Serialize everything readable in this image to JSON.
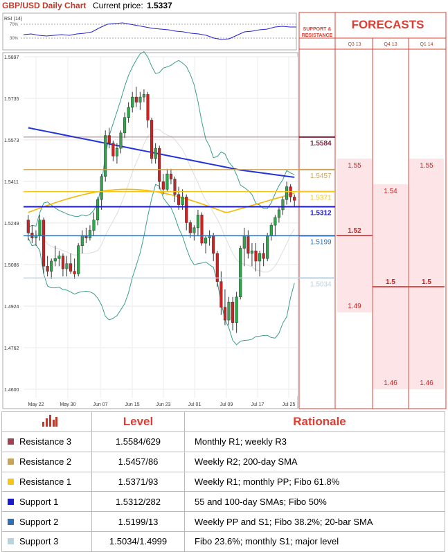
{
  "header": {
    "title": "GBP/USD Daily Chart",
    "price_label": "Current price:",
    "price_value": "1.5337"
  },
  "chart_data": {
    "type": "candlestick",
    "title": "GBP/USD Daily Chart",
    "ylim": [
      1.46,
      1.5897
    ],
    "y_ticks": [
      "1.5897",
      "1.5735",
      "1.5573",
      "1.5411",
      "1.5249",
      "1.5086",
      "1.4924",
      "1.4762",
      "1.4600"
    ],
    "x_ticks": [
      "May 22",
      "May 30",
      "Jun 07",
      "Jun 15",
      "Jun 23",
      "Jul 01",
      "Jul 09",
      "Jul 17",
      "Jul 25"
    ],
    "rsi": {
      "label": "RSI (14)",
      "levels": [
        "70%",
        "30%"
      ]
    },
    "candles": [
      [
        1.526,
        1.528,
        1.518,
        1.521
      ],
      [
        1.521,
        1.524,
        1.517,
        1.519
      ],
      [
        1.519,
        1.522,
        1.516,
        1.52
      ],
      [
        1.52,
        1.528,
        1.518,
        1.526
      ],
      [
        1.526,
        1.527,
        1.505,
        1.508
      ],
      [
        1.508,
        1.512,
        1.504,
        1.506
      ],
      [
        1.506,
        1.511,
        1.503,
        1.51
      ],
      [
        1.51,
        1.516,
        1.508,
        1.511
      ],
      [
        1.511,
        1.514,
        1.508,
        1.512
      ],
      [
        1.512,
        1.513,
        1.504,
        1.507
      ],
      [
        1.507,
        1.512,
        1.504,
        1.509
      ],
      [
        1.509,
        1.513,
        1.505,
        1.506
      ],
      [
        1.506,
        1.511,
        1.503,
        1.505
      ],
      [
        1.505,
        1.517,
        1.504,
        1.516
      ],
      [
        1.516,
        1.522,
        1.513,
        1.52
      ],
      [
        1.52,
        1.523,
        1.517,
        1.519
      ],
      [
        1.519,
        1.524,
        1.518,
        1.522
      ],
      [
        1.522,
        1.529,
        1.52,
        1.526
      ],
      [
        1.526,
        1.535,
        1.524,
        1.534
      ],
      [
        1.534,
        1.544,
        1.53,
        1.543
      ],
      [
        1.543,
        1.561,
        1.541,
        1.559
      ],
      [
        1.559,
        1.562,
        1.554,
        1.556
      ],
      [
        1.556,
        1.557,
        1.549,
        1.551
      ],
      [
        1.551,
        1.556,
        1.548,
        1.554
      ],
      [
        1.554,
        1.561,
        1.552,
        1.56
      ],
      [
        1.56,
        1.568,
        1.558,
        1.566
      ],
      [
        1.566,
        1.572,
        1.564,
        1.57
      ],
      [
        1.57,
        1.576,
        1.568,
        1.574
      ],
      [
        1.574,
        1.578,
        1.57,
        1.572
      ],
      [
        1.572,
        1.576,
        1.569,
        1.574
      ],
      [
        1.574,
        1.577,
        1.572,
        1.575
      ],
      [
        1.575,
        1.576,
        1.562,
        1.565
      ],
      [
        1.565,
        1.566,
        1.548,
        1.55
      ],
      [
        1.55,
        1.556,
        1.548,
        1.554
      ],
      [
        1.554,
        1.555,
        1.538,
        1.541
      ],
      [
        1.541,
        1.544,
        1.536,
        1.538
      ],
      [
        1.538,
        1.546,
        1.537,
        1.544
      ],
      [
        1.544,
        1.546,
        1.54,
        1.542
      ],
      [
        1.542,
        1.543,
        1.533,
        1.536
      ],
      [
        1.536,
        1.539,
        1.53,
        1.532
      ],
      [
        1.532,
        1.538,
        1.53,
        1.535
      ],
      [
        1.535,
        1.536,
        1.522,
        1.525
      ],
      [
        1.525,
        1.526,
        1.519,
        1.521
      ],
      [
        1.521,
        1.524,
        1.518,
        1.523
      ],
      [
        1.523,
        1.53,
        1.52,
        1.528
      ],
      [
        1.528,
        1.529,
        1.516,
        1.517
      ],
      [
        1.517,
        1.52,
        1.513,
        1.519
      ],
      [
        1.519,
        1.522,
        1.516,
        1.52
      ],
      [
        1.52,
        1.521,
        1.51,
        1.513
      ],
      [
        1.513,
        1.514,
        1.5,
        1.502
      ],
      [
        1.502,
        1.506,
        1.489,
        1.492
      ],
      [
        1.492,
        1.499,
        1.485,
        1.487
      ],
      [
        1.487,
        1.496,
        1.485,
        1.494
      ],
      [
        1.494,
        1.496,
        1.483,
        1.486
      ],
      [
        1.486,
        1.498,
        1.482,
        1.496
      ],
      [
        1.496,
        1.516,
        1.495,
        1.515
      ],
      [
        1.515,
        1.523,
        1.508,
        1.52
      ],
      [
        1.52,
        1.522,
        1.511,
        1.513
      ],
      [
        1.513,
        1.517,
        1.508,
        1.514
      ],
      [
        1.514,
        1.517,
        1.506,
        1.51
      ],
      [
        1.51,
        1.514,
        1.504,
        1.513
      ],
      [
        1.513,
        1.517,
        1.508,
        1.511
      ],
      [
        1.511,
        1.521,
        1.51,
        1.52
      ],
      [
        1.52,
        1.525,
        1.518,
        1.524
      ],
      [
        1.524,
        1.528,
        1.52,
        1.527
      ],
      [
        1.527,
        1.531,
        1.525,
        1.53
      ],
      [
        1.53,
        1.535,
        1.528,
        1.534
      ],
      [
        1.534,
        1.541,
        1.532,
        1.539
      ],
      [
        1.539,
        1.54,
        1.533,
        1.535
      ],
      [
        1.535,
        1.536,
        1.531,
        1.5337
      ]
    ],
    "levels": [
      {
        "value": "1.5584",
        "name": "Resistance 3",
        "color": "#7b1f3a"
      },
      {
        "value": "1.5457",
        "name": "Resistance 2",
        "color": "#c9a456"
      },
      {
        "value": "1.5371",
        "name": "Resistance 1",
        "color": "#f5c518"
      },
      {
        "value": "1.5312",
        "name": "Support 1",
        "color": "#1a1acc"
      },
      {
        "value": "1.5199",
        "name": "Support 2",
        "color": "#2e6fb5"
      },
      {
        "value": "1.5034",
        "name": "Support 3",
        "color": "#b9d2e0"
      }
    ],
    "forecasts": {
      "title": "FORECASTS",
      "side_label": [
        "SUPPORT &",
        "RESISTANCE"
      ],
      "quarters": [
        {
          "name": "Q3 13",
          "high": "1.55",
          "mid": "1.52",
          "low": "1.49"
        },
        {
          "name": "Q4 13",
          "high": "1.54",
          "mid": "1.5",
          "low": "1.46"
        },
        {
          "name": "Q1 14",
          "high": "1.55",
          "mid": "1.5",
          "low": "1.46"
        }
      ]
    }
  },
  "table": {
    "headers": [
      "",
      "Level",
      "Rationale"
    ],
    "rows": [
      {
        "name": "Resistance 3",
        "level": "1.5584/629",
        "rationale": "Monthly R1; weekly R3",
        "color": "#a0434f"
      },
      {
        "name": "Resistance 2",
        "level": "1.5457/86",
        "rationale": "Weekly R2; 200-day SMA",
        "color": "#c9a456"
      },
      {
        "name": "Resistance 1",
        "level": "1.5371/93",
        "rationale": "Weekly R1; monthly PP; Fibo 61.8%",
        "color": "#f5c518"
      },
      {
        "name": "Support 1",
        "level": "1.5312/282",
        "rationale": "55 and 100-day SMAs; Fibo 50%",
        "color": "#1a1acc"
      },
      {
        "name": "Support 2",
        "level": "1.5199/13",
        "rationale": "Weekly PP and S1; Fibo 38.2%; 20-bar SMA",
        "color": "#2e6fb5"
      },
      {
        "name": "Support 3",
        "level": "1.5034/1.4999",
        "rationale": "Fibo 23.6%; monthly S1; major level",
        "color": "#b9d2e0"
      }
    ]
  }
}
